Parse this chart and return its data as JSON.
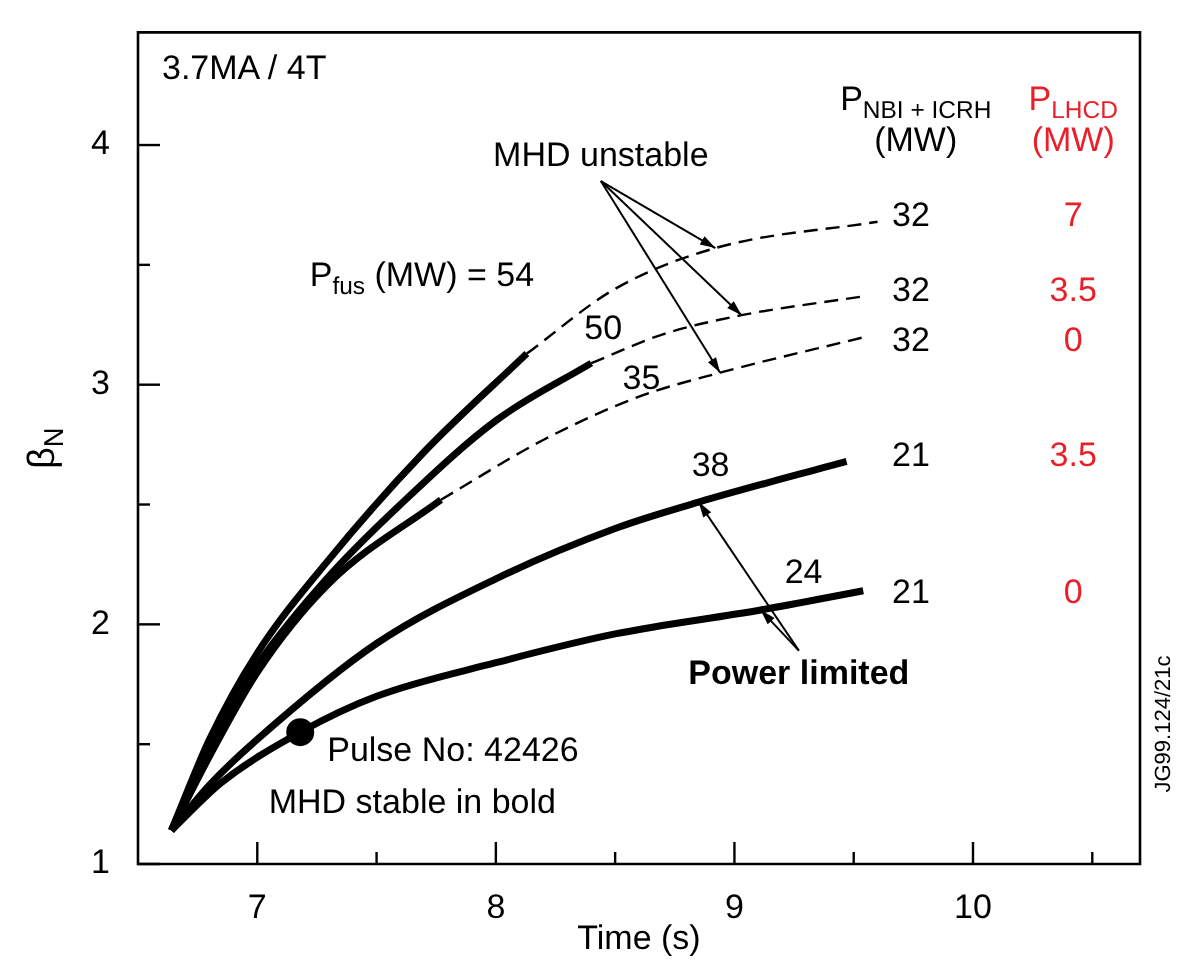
{
  "chart_data": {
    "type": "line",
    "title": "3.7MA / 4T",
    "xlabel": "Time (s)",
    "ylabel": "β$_{N}$",
    "xlim": [
      6.5,
      10.7
    ],
    "xticks": [
      7,
      {
        "value": 7.5,
        "label": null
      },
      8,
      {
        "value": 8.5,
        "label": null
      },
      9,
      {
        "value": 9.5,
        "label": null
      },
      10,
      {
        "value": 10.5,
        "label": null
      }
    ],
    "ylim": [
      1,
      4.47
    ],
    "yticks": [
      1,
      {
        "value": 1.5,
        "label": null
      },
      2,
      {
        "value": 2.5,
        "label": null
      },
      3,
      {
        "value": 3.5,
        "label": null
      },
      4
    ],
    "marker": "none",
    "legend": false,
    "series": [
      {
        "color": "#000000",
        "line_style": "solid",
        "x": [
          6.64,
          6.8,
          7.0,
          7.3,
          7.7,
          8.13
        ],
        "values": [
          1.14,
          1.52,
          1.88,
          2.27,
          2.72,
          3.13
        ]
      },
      {
        "color": "#000000",
        "line_style": "dashed",
        "x": [
          8.13,
          8.5,
          8.92,
          9.6
        ],
        "values": [
          3.13,
          3.4,
          3.57,
          3.68
        ]
      },
      {
        "color": "#000000",
        "line_style": "solid",
        "x": [
          6.64,
          6.8,
          7.0,
          7.3,
          7.6,
          8.0,
          8.4
        ],
        "values": [
          1.14,
          1.5,
          1.83,
          2.2,
          2.5,
          2.85,
          3.09
        ]
      },
      {
        "color": "#000000",
        "line_style": "dashed",
        "x": [
          8.4,
          8.7,
          9.03,
          9.55
        ],
        "values": [
          3.09,
          3.21,
          3.29,
          3.37
        ]
      },
      {
        "color": "#000000",
        "line_style": "solid",
        "x": [
          6.64,
          6.8,
          7.0,
          7.3,
          7.77
        ],
        "values": [
          1.14,
          1.45,
          1.8,
          2.17,
          2.52
        ]
      },
      {
        "color": "#000000",
        "line_style": "dashed",
        "x": [
          7.77,
          8.2,
          8.6,
          8.94,
          9.55
        ],
        "values": [
          2.52,
          2.77,
          2.95,
          3.05,
          3.2
        ]
      },
      {
        "color": "#000000",
        "line_style": "solid",
        "x": [
          6.64,
          6.8,
          7.0,
          7.5,
          8.0,
          8.5,
          8.85,
          9.47
        ],
        "values": [
          1.14,
          1.33,
          1.52,
          1.92,
          2.19,
          2.4,
          2.51,
          2.68
        ]
      },
      {
        "color": "#000000",
        "line_style": "solid",
        "x": [
          6.64,
          6.85,
          7.18,
          7.5,
          8.0,
          8.5,
          9.11,
          9.54
        ],
        "values": [
          1.14,
          1.34,
          1.55,
          1.7,
          1.84,
          1.96,
          2.06,
          2.14
        ]
      },
      {
        "type": "scatter",
        "marker": "circle",
        "color": "#000000",
        "x": [
          7.18
        ],
        "values": [
          1.55
        ]
      }
    ],
    "annotations": [
      "P$_{fus}$ (MW) = 54",
      "50",
      "35",
      "38",
      "24",
      {
        "text": "MHD unstable",
        "x": 9.03,
        "y": 3.29
      },
      {
        "text": "Power limited",
        "x": 8.85,
        "y": 2.51
      },
      "Pulse No: 42426",
      "MHD stable in bold",
      "P$_{NBI + ICRH}$\n(MW)",
      "P$_{LHCD}$\n(MW)",
      "32",
      "7",
      "32",
      "3.5",
      "32",
      "0",
      "21",
      "3.5",
      "21",
      "0",
      "JG99.124/21c"
    ]
  }
}
